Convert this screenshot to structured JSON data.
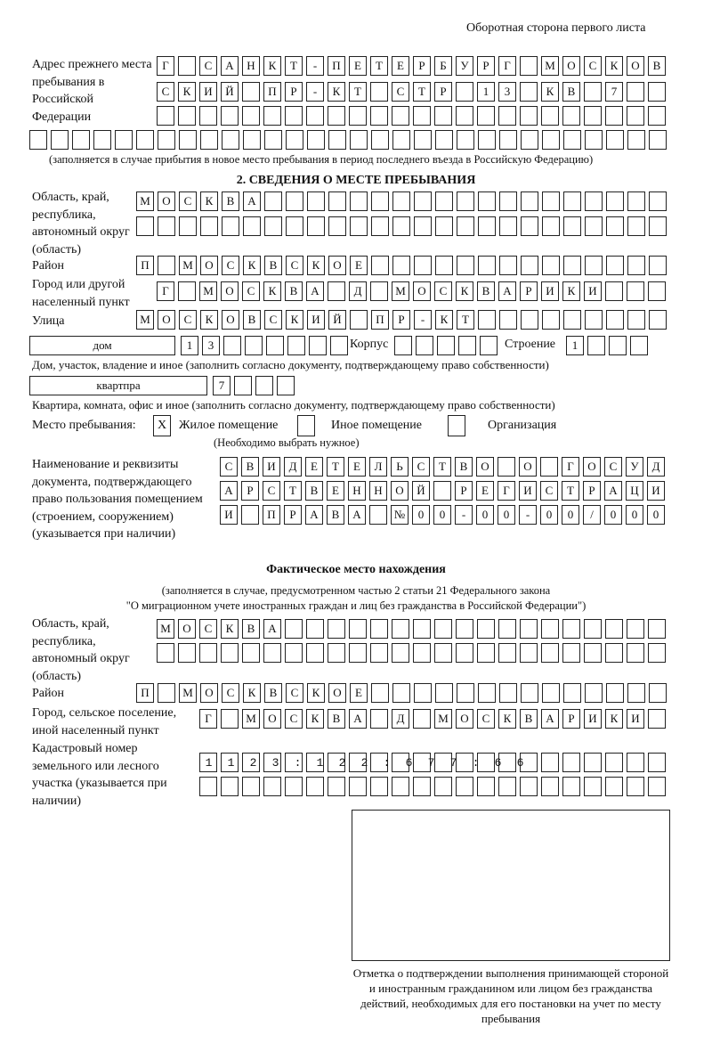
{
  "header": "Оборотная сторона первого листа",
  "prev_address": {
    "label": "Адрес прежнего места пребывания в Российской Федерации",
    "rows": [
      "Г САНКТ-ПЕТЕРБУРГ МОСКОВ",
      "СКИЙ ПР-КТ СТР 13 КВ 7  ",
      "                        ",
      "                              "
    ],
    "note": "(заполняется в случае прибытия в новое место пребывания в период последнего въезда в Российскую Федерацию)"
  },
  "section2": {
    "title": "2. СВЕДЕНИЯ О МЕСТЕ ПРЕБЫВАНИЯ",
    "region_label": "Область, край, республика, автономный округ (область)",
    "region_rows": [
      "МОСКВА                   ",
      "                         "
    ],
    "district_label": "Район",
    "district": "П МОСКВСКОЕ              ",
    "city_label": "Город или другой населенный пункт",
    "city": "Г МОСКВА Д МОСКВАРИКИ   ",
    "street_label": "Улица",
    "street": "МОСКОВСКИЙ ПР-КТ         ",
    "house_type": "дом",
    "house_number": "13      ",
    "korpus_label": "Корпус",
    "korpus": "     ",
    "building_label": "Строение",
    "building": "1   ",
    "house_note": "Дом, участок, владение и иное (заполнить согласно документу, подтверждающему право собственности)",
    "apt_type": "квартпра",
    "apt_number": "7   ",
    "apt_note": "Квартира, комната, офис и иное (заполнить согласно документу, подтверждающему право собственности)",
    "place_label": "Место пребывания:",
    "place_options": [
      {
        "label": "Жилое помещение",
        "mark": "X"
      },
      {
        "label": "Иное помещение",
        "mark": ""
      },
      {
        "label": "Организация",
        "mark": ""
      }
    ],
    "place_note": "(Необходимо выбрать нужное)",
    "doc_label": "Наименование и реквизиты документа, подтверждающего право пользования помещением (строением, сооружением) (указывается при наличии)",
    "doc_rows": [
      "СВИДЕТЕЛЬСТВО О ГОСУД",
      "АРСТВЕННОЙ РЕГИСТРАЦИ",
      "И ПРАВА №00-00-00/000"
    ]
  },
  "actual": {
    "title": "Фактическое место нахождения",
    "note1": "(заполняется в случае, предусмотренном частью 2 статьи 21 Федерального закона",
    "note2": "\"О миграционном учете иностранных граждан и лиц без гражданства в Российской Федерации\")",
    "region_label": "Область, край, республика, автономный округ (область)",
    "region_rows": [
      "МОСКВА                  ",
      "                        "
    ],
    "district_label": "Район",
    "district": "П МОСКВСКОЕ              ",
    "city_label": "Город, сельское поселение, иной населенный пункт",
    "city": "Г МОСКВА Д МОСКВАРИКИ ",
    "cadastral_label": "Кадастровый номер земельного или лесного участка (указывается при наличии)",
    "cadastral_rows": [
      "1123:122:677:66       ",
      "                      "
    ]
  },
  "stamp_caption": "Отметка о подтверждении выполнения принимающей стороной и иностранным гражданином или лицом без гражданства действий, необходимых для его постановки на учет по месту пребывания"
}
